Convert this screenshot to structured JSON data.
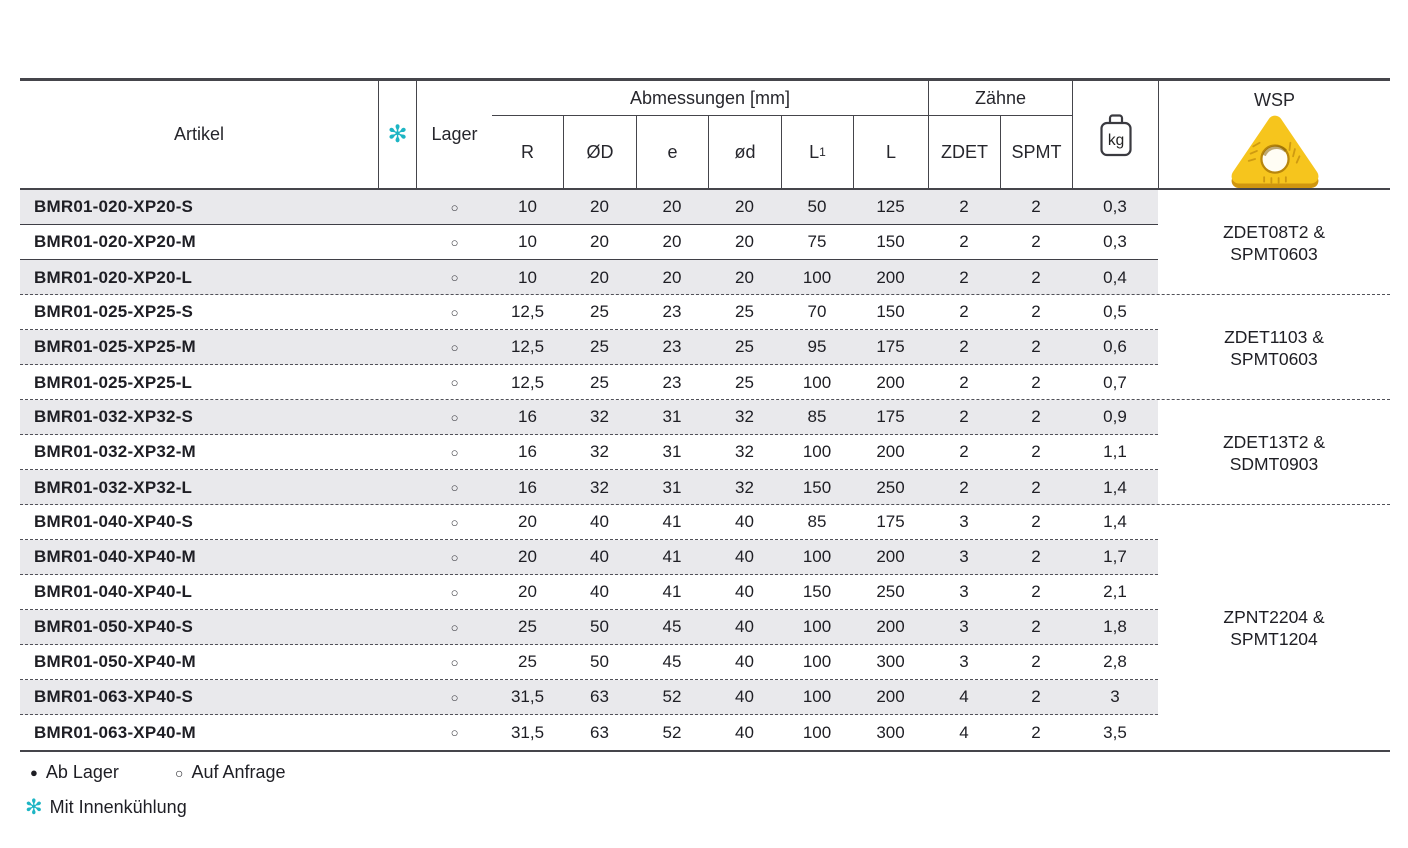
{
  "colors": {
    "accent_teal": "#1db5c4",
    "row_shade_gray": "#e9e9ec",
    "table_line": "#45454b",
    "insert_yellow": "#f6c51d",
    "insert_shadow": "#d0960f"
  },
  "header": {
    "artikel_label": "Artikel",
    "coolant_icon_glyph": "✻",
    "lager_label": "Lager",
    "abmessungen_label": "Abmessungen [mm]",
    "dims": [
      {
        "label": "R",
        "sub": ""
      },
      {
        "label": "ØD",
        "sub": ""
      },
      {
        "label": "e",
        "sub": ""
      },
      {
        "label": "ød",
        "sub": ""
      },
      {
        "label": "L",
        "sub": "1"
      },
      {
        "label": "L",
        "sub": ""
      }
    ],
    "zaehne_label": "Zähne",
    "zdet_label": "ZDET",
    "spmt_label": "SPMT",
    "weight_unit": "kg",
    "wsp_label": "WSP"
  },
  "rows": [
    {
      "article": "BMR01-020-XP20-S",
      "stock": "○",
      "r": "10",
      "od": "20",
      "e": "20",
      "oed": "20",
      "l1": "50",
      "l": "125",
      "zdet": "2",
      "spmt": "2",
      "kg": "0,3"
    },
    {
      "article": "BMR01-020-XP20-M",
      "stock": "○",
      "r": "10",
      "od": "20",
      "e": "20",
      "oed": "20",
      "l1": "75",
      "l": "150",
      "zdet": "2",
      "spmt": "2",
      "kg": "0,3"
    },
    {
      "article": "BMR01-020-XP20-L",
      "stock": "○",
      "r": "10",
      "od": "20",
      "e": "20",
      "oed": "20",
      "l1": "100",
      "l": "200",
      "zdet": "2",
      "spmt": "2",
      "kg": "0,4"
    },
    {
      "article": "BMR01-025-XP25-S",
      "stock": "○",
      "r": "12,5",
      "od": "25",
      "e": "23",
      "oed": "25",
      "l1": "70",
      "l": "150",
      "zdet": "2",
      "spmt": "2",
      "kg": "0,5"
    },
    {
      "article": "BMR01-025-XP25-M",
      "stock": "○",
      "r": "12,5",
      "od": "25",
      "e": "23",
      "oed": "25",
      "l1": "95",
      "l": "175",
      "zdet": "2",
      "spmt": "2",
      "kg": "0,6"
    },
    {
      "article": "BMR01-025-XP25-L",
      "stock": "○",
      "r": "12,5",
      "od": "25",
      "e": "23",
      "oed": "25",
      "l1": "100",
      "l": "200",
      "zdet": "2",
      "spmt": "2",
      "kg": "0,7"
    },
    {
      "article": "BMR01-032-XP32-S",
      "stock": "○",
      "r": "16",
      "od": "32",
      "e": "31",
      "oed": "32",
      "l1": "85",
      "l": "175",
      "zdet": "2",
      "spmt": "2",
      "kg": "0,9"
    },
    {
      "article": "BMR01-032-XP32-M",
      "stock": "○",
      "r": "16",
      "od": "32",
      "e": "31",
      "oed": "32",
      "l1": "100",
      "l": "200",
      "zdet": "2",
      "spmt": "2",
      "kg": "1,1"
    },
    {
      "article": "BMR01-032-XP32-L",
      "stock": "○",
      "r": "16",
      "od": "32",
      "e": "31",
      "oed": "32",
      "l1": "150",
      "l": "250",
      "zdet": "2",
      "spmt": "2",
      "kg": "1,4"
    },
    {
      "article": "BMR01-040-XP40-S",
      "stock": "○",
      "r": "20",
      "od": "40",
      "e": "41",
      "oed": "40",
      "l1": "85",
      "l": "175",
      "zdet": "3",
      "spmt": "2",
      "kg": "1,4"
    },
    {
      "article": "BMR01-040-XP40-M",
      "stock": "○",
      "r": "20",
      "od": "40",
      "e": "41",
      "oed": "40",
      "l1": "100",
      "l": "200",
      "zdet": "3",
      "spmt": "2",
      "kg": "1,7"
    },
    {
      "article": "BMR01-040-XP40-L",
      "stock": "○",
      "r": "20",
      "od": "40",
      "e": "41",
      "oed": "40",
      "l1": "150",
      "l": "250",
      "zdet": "3",
      "spmt": "2",
      "kg": "2,1"
    },
    {
      "article": "BMR01-050-XP40-S",
      "stock": "○",
      "r": "25",
      "od": "50",
      "e": "45",
      "oed": "40",
      "l1": "100",
      "l": "200",
      "zdet": "3",
      "spmt": "2",
      "kg": "1,8"
    },
    {
      "article": "BMR01-050-XP40-M",
      "stock": "○",
      "r": "25",
      "od": "50",
      "e": "45",
      "oed": "40",
      "l1": "100",
      "l": "300",
      "zdet": "3",
      "spmt": "2",
      "kg": "2,8"
    },
    {
      "article": "BMR01-063-XP40-S",
      "stock": "○",
      "r": "31,5",
      "od": "63",
      "e": "52",
      "oed": "40",
      "l1": "100",
      "l": "200",
      "zdet": "4",
      "spmt": "2",
      "kg": "3"
    },
    {
      "article": "BMR01-063-XP40-M",
      "stock": "○",
      "r": "31,5",
      "od": "63",
      "e": "52",
      "oed": "40",
      "l1": "100",
      "l": "300",
      "zdet": "4",
      "spmt": "2",
      "kg": "3,5"
    }
  ],
  "wsp_groups": [
    {
      "line1": "ZDET08T2 &",
      "line2": "SPMT0603",
      "row_count": 3
    },
    {
      "line1": "ZDET1103 &",
      "line2": "SPMT0603",
      "row_count": 3
    },
    {
      "line1": "ZDET13T2 &",
      "line2": "SDMT0903",
      "row_count": 3
    },
    {
      "line1": "ZPNT2204 &",
      "line2": "SPMT1204",
      "row_count": 7
    }
  ],
  "legend": {
    "in_stock_symbol": "●",
    "in_stock_label": "Ab Lager",
    "on_request_symbol": "○",
    "on_request_label": "Auf Anfrage",
    "coolant_symbol": "✻",
    "coolant_label": "Mit Innenkühlung"
  }
}
